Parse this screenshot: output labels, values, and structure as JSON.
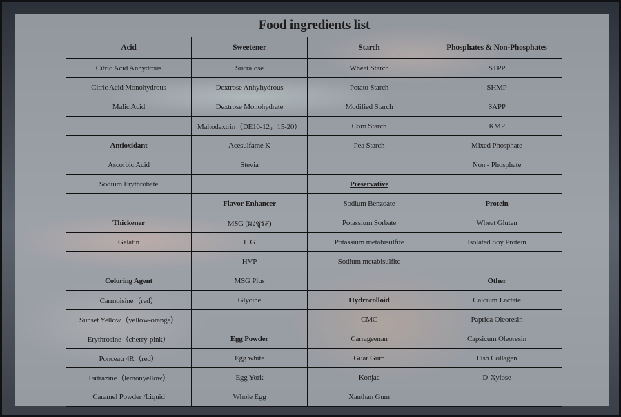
{
  "title": "Food ingredients list",
  "columns": [
    "Acid",
    "Sweetener",
    "Starch",
    "Phosphates & Non-Phosphates"
  ],
  "rows": [
    [
      {
        "t": "Citric Acid Anhydrous"
      },
      {
        "t": "Sucralose"
      },
      {
        "t": "Wheat Starch"
      },
      {
        "t": "STPP"
      }
    ],
    [
      {
        "t": "Citric Acid Monohydrous"
      },
      {
        "t": "Dextrose Anhyhydrous"
      },
      {
        "t": "Potato Starch"
      },
      {
        "t": "SHMP"
      }
    ],
    [
      {
        "t": "Malic Acid"
      },
      {
        "t": "Dextrose Monohydrate"
      },
      {
        "t": "Modified Starch"
      },
      {
        "t": "SAPP"
      }
    ],
    [
      {
        "t": ""
      },
      {
        "t": "Maltodextrin（DE10-12，15-20）"
      },
      {
        "t": "Corn Starch"
      },
      {
        "t": "KMP"
      }
    ],
    [
      {
        "t": "Antioxidant",
        "s": "heading"
      },
      {
        "t": "Acesulfame K"
      },
      {
        "t": "Pea Starch"
      },
      {
        "t": "Mixed Phosphate"
      }
    ],
    [
      {
        "t": "Ascorbic Acid"
      },
      {
        "t": "Stevia"
      },
      {
        "t": ""
      },
      {
        "t": "Non - Phosphate"
      }
    ],
    [
      {
        "t": "Sodium Erythrobate"
      },
      {
        "t": ""
      },
      {
        "t": "Preservative",
        "s": "underline"
      },
      {
        "t": ""
      }
    ],
    [
      {
        "t": ""
      },
      {
        "t": "Flavor Enhancer",
        "s": "heading"
      },
      {
        "t": "Sodium Benzoate"
      },
      {
        "t": "Protein",
        "s": "heading"
      }
    ],
    [
      {
        "t": "Thickener",
        "s": "underline"
      },
      {
        "t": "MSG (ผงชูรส)"
      },
      {
        "t": "Potassium Sorbate"
      },
      {
        "t": "Wheat Gluten"
      }
    ],
    [
      {
        "t": "Gelatin"
      },
      {
        "t": "I+G"
      },
      {
        "t": "Potassium metabisulfite"
      },
      {
        "t": "Isolated Soy Protein"
      }
    ],
    [
      {
        "t": ""
      },
      {
        "t": "HVP"
      },
      {
        "t": "Sodium metabisulfite"
      },
      {
        "t": ""
      }
    ],
    [
      {
        "t": "Coloring Agent",
        "s": "underline"
      },
      {
        "t": "MSG Plus"
      },
      {
        "t": ""
      },
      {
        "t": "Other",
        "s": "underline"
      }
    ],
    [
      {
        "t": "Carmoisine（red）"
      },
      {
        "t": "Glycine"
      },
      {
        "t": "Hydrocolloid",
        "s": "heading"
      },
      {
        "t": "Calcium Lactate"
      }
    ],
    [
      {
        "t": "Sunset Yellow（yellow-orange）"
      },
      {
        "t": ""
      },
      {
        "t": "CMC"
      },
      {
        "t": "Paprica Oleoresin"
      }
    ],
    [
      {
        "t": "Erythrosine（cherry-pink）"
      },
      {
        "t": "Egg Powder",
        "s": "heading"
      },
      {
        "t": "Carrageenan"
      },
      {
        "t": "Capsicum Oleoresin"
      }
    ],
    [
      {
        "t": "Ponceau 4R（red）"
      },
      {
        "t": "Egg white"
      },
      {
        "t": "Guar Gum"
      },
      {
        "t": "Fish Collagen"
      }
    ],
    [
      {
        "t": "Tartrazine（lemonyellow）"
      },
      {
        "t": "Egg York"
      },
      {
        "t": "Konjac"
      },
      {
        "t": "D-Xylose"
      }
    ],
    [
      {
        "t": "Caramel Powder /Liquid"
      },
      {
        "t": "Whole Egg"
      },
      {
        "t": "Xanthan Gum"
      },
      {
        "t": ""
      }
    ]
  ]
}
